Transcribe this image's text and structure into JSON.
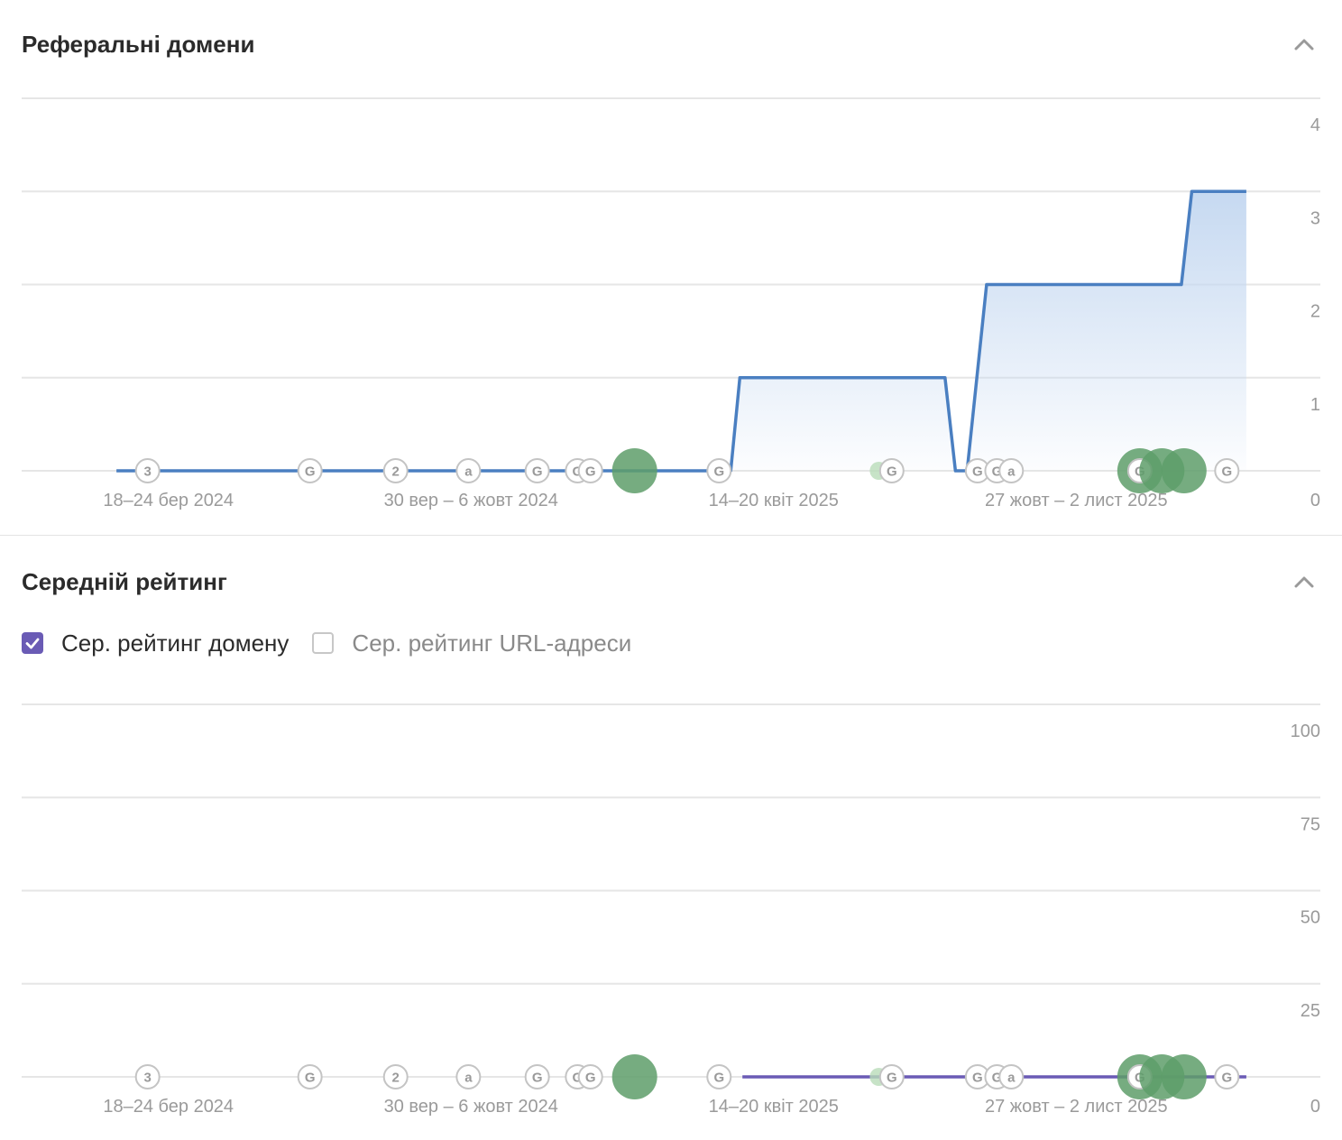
{
  "sections": [
    {
      "title": "Реферальні домени"
    },
    {
      "title": "Середній рейтинг"
    }
  ],
  "legend": [
    {
      "label": "Сер. рейтинг домену",
      "checked": true
    },
    {
      "label": "Сер. рейтинг URL-адреси",
      "checked": false
    }
  ],
  "colors": {
    "referring_line": "#4a7fc1",
    "referring_fill": "#c6d9f1",
    "domain_rating_line": "#6a5bb5",
    "event_green": "#5e9e6a",
    "grid": "#e6e6e6",
    "tick": "#9a9a9a"
  },
  "markers": [
    {
      "x": 0.097,
      "text": "3",
      "type": "label"
    },
    {
      "x": 0.222,
      "text": "G",
      "type": "label"
    },
    {
      "x": 0.288,
      "text": "2",
      "type": "label"
    },
    {
      "x": 0.344,
      "text": "a",
      "type": "label"
    },
    {
      "x": 0.397,
      "text": "G",
      "type": "label"
    },
    {
      "x": 0.428,
      "text": "G",
      "type": "label"
    },
    {
      "x": 0.438,
      "text": "G",
      "type": "label"
    },
    {
      "x": 0.472,
      "type": "circle",
      "size": "large"
    },
    {
      "x": 0.537,
      "text": "G",
      "type": "label"
    },
    {
      "x": 0.66,
      "type": "circle",
      "size": "small"
    },
    {
      "x": 0.67,
      "text": "G",
      "type": "label"
    },
    {
      "x": 0.736,
      "text": "G",
      "type": "label"
    },
    {
      "x": 0.751,
      "text": "G",
      "type": "label"
    },
    {
      "x": 0.762,
      "text": "a",
      "type": "label"
    },
    {
      "x": 0.861,
      "type": "circle",
      "size": "large"
    },
    {
      "x": 0.861,
      "text": "G",
      "type": "label"
    },
    {
      "x": 0.878,
      "type": "circle",
      "size": "large"
    },
    {
      "x": 0.895,
      "type": "circle",
      "size": "large"
    },
    {
      "x": 0.928,
      "text": "G",
      "type": "label"
    }
  ],
  "chart_data": [
    {
      "type": "area",
      "title": "Реферальні домени",
      "x_ticks": [
        "18–24 бер 2024",
        "30 вер – 6 жовт 2024",
        "14–20 квіт 2025",
        "27 жовт – 2 лист 2025"
      ],
      "x_tick_pos": [
        0.113,
        0.346,
        0.579,
        0.812
      ],
      "y_ticks": [
        "0",
        "1",
        "2",
        "3",
        "4"
      ],
      "ylim": [
        0,
        4
      ],
      "series": [
        {
          "x": [
            0.073,
            0.546,
            0.553,
            0.711,
            0.719,
            0.728,
            0.743,
            0.893,
            0.901,
            0.943
          ],
          "values": [
            0,
            0,
            1,
            1,
            0,
            0,
            2,
            2,
            3,
            3
          ]
        }
      ]
    },
    {
      "type": "line",
      "title": "Середній рейтинг",
      "x_ticks": [
        "18–24 бер 2024",
        "30 вер – 6 жовт 2024",
        "14–20 квіт 2025",
        "27 жовт – 2 лист 2025"
      ],
      "x_tick_pos": [
        0.113,
        0.346,
        0.579,
        0.812
      ],
      "y_ticks": [
        "0",
        "25",
        "50",
        "75",
        "100"
      ],
      "ylim": [
        0,
        100
      ],
      "series": [
        {
          "x": [
            0.555,
            0.943
          ],
          "values": [
            0,
            0
          ]
        }
      ]
    }
  ]
}
